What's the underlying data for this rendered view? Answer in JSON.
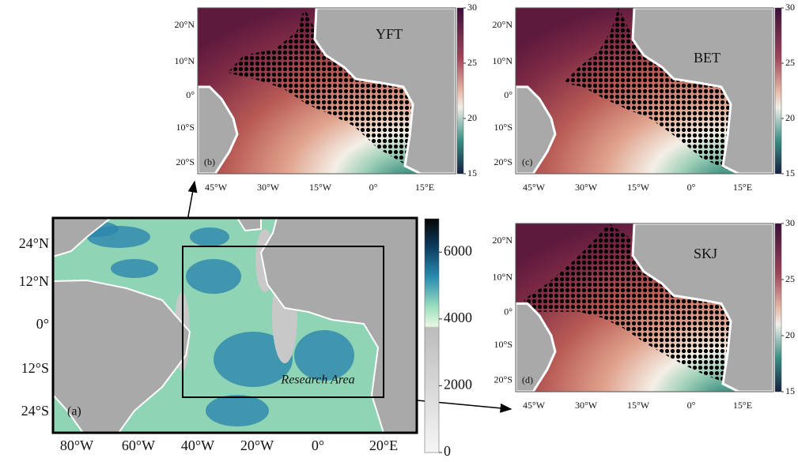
{
  "panels": [
    {
      "label": "(a)",
      "xticks": [
        "80°W",
        "60°W",
        "40°W",
        "20°W",
        "0°",
        "20°E"
      ],
      "yticks": [
        "24°N",
        "12°N",
        "0°",
        "12°S",
        "24°S"
      ],
      "annotation": "Research Area",
      "colorbar": {
        "lim": [
          0,
          7000
        ],
        "ticks": [
          0,
          2000,
          4000,
          6000
        ]
      }
    },
    {
      "label": "(b)",
      "species": "YFT",
      "xticks": [
        "45°W",
        "30°W",
        "15°W",
        "0°",
        "15°E"
      ],
      "yticks": [
        "20°N",
        "10°N",
        "0°",
        "10°S",
        "20°S"
      ],
      "colorbar": {
        "lim": [
          15,
          30
        ],
        "ticks": [
          15,
          20,
          25,
          30
        ]
      }
    },
    {
      "label": "(c)",
      "species": "BET",
      "xticks": [
        "45°W",
        "30°W",
        "15°W",
        "0°",
        "15°E"
      ],
      "yticks": [
        "20°N",
        "10°N",
        "0°",
        "10°S",
        "20°S"
      ],
      "colorbar": {
        "lim": [
          15,
          30
        ],
        "ticks": [
          15,
          20,
          25,
          30
        ]
      }
    },
    {
      "label": "(d)",
      "species": "SKJ",
      "xticks": [
        "45°W",
        "30°W",
        "15°W",
        "0°",
        "15°E"
      ],
      "yticks": [
        "20°N",
        "10°N",
        "0°",
        "10°S",
        "20°S"
      ],
      "colorbar": {
        "lim": [
          15,
          30
        ],
        "ticks": [
          15,
          20,
          25,
          30
        ]
      }
    }
  ]
}
